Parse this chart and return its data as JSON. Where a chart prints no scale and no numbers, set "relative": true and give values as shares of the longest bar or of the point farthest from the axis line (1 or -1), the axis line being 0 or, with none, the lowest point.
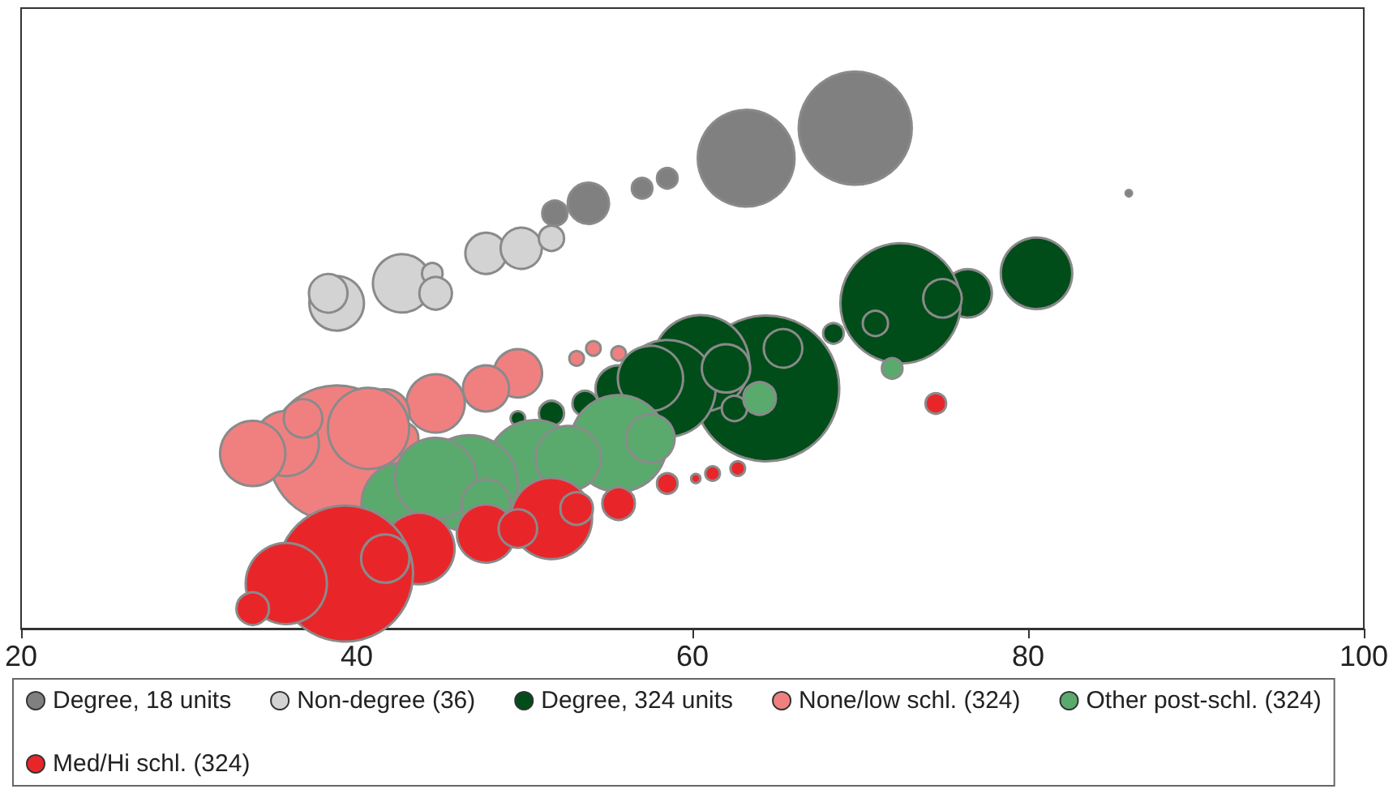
{
  "chart_data": {
    "type": "bubble",
    "relative": true,
    "xlim": [
      20,
      100
    ],
    "xticks": [
      20,
      40,
      60,
      80,
      100
    ],
    "legend": "bottom",
    "grid": false,
    "series": [
      {
        "name": "Degree, 18 units",
        "color": "#808080",
        "x": [
          86.0,
          69.7,
          63.2,
          58.5,
          57.0,
          53.8,
          51.8
        ],
        "values": [
          0.87,
          1.0,
          0.94,
          0.9,
          0.88,
          0.85,
          0.83
        ],
        "sizes": [
          0.002,
          0.6,
          0.44,
          0.02,
          0.02,
          0.08,
          0.03
        ]
      },
      {
        "name": "Non-degree (36)",
        "color": "#d3d3d3",
        "x": [
          38.8,
          42.7,
          44.5,
          47.7,
          49.8,
          51.6,
          44.7,
          38.3
        ],
        "values": [
          0.65,
          0.69,
          0.71,
          0.75,
          0.76,
          0.78,
          0.67,
          0.67
        ],
        "sizes": [
          0.14,
          0.16,
          0.02,
          0.08,
          0.08,
          0.03,
          0.05,
          0.07
        ]
      },
      {
        "name": "Degree, 324 units",
        "color": "#004d1a",
        "x": [
          80.5,
          76.4,
          72.4,
          74.9,
          70.9,
          68.4,
          64.4,
          60.5,
          58.5,
          62.0,
          55.6,
          53.6,
          51.6,
          49.6,
          65.4,
          62.5,
          57.5
        ],
        "values": [
          0.71,
          0.67,
          0.65,
          0.66,
          0.61,
          0.59,
          0.48,
          0.53,
          0.48,
          0.52,
          0.48,
          0.45,
          0.43,
          0.42,
          0.56,
          0.44,
          0.5
        ],
        "sizes": [
          0.24,
          0.11,
          0.68,
          0.07,
          0.03,
          0.02,
          1.0,
          0.44,
          0.44,
          0.11,
          0.1,
          0.03,
          0.03,
          0.01,
          0.07,
          0.03,
          0.2
        ]
      },
      {
        "name": "None/low schl. (324)",
        "color": "#f08080",
        "x": [
          55.6,
          53.1,
          54.1,
          49.6,
          47.7,
          44.7,
          41.7,
          38.8,
          35.8,
          33.8,
          36.8,
          42.7,
          40.7
        ],
        "values": [
          0.55,
          0.54,
          0.56,
          0.51,
          0.48,
          0.45,
          0.43,
          0.35,
          0.37,
          0.35,
          0.42,
          0.38,
          0.4
        ],
        "sizes": [
          0.01,
          0.01,
          0.01,
          0.11,
          0.1,
          0.16,
          0.11,
          0.87,
          0.2,
          0.2,
          0.07,
          0.05,
          0.31
        ]
      },
      {
        "name": "Other post-schl. (324)",
        "color": "#5aaa6e",
        "x": [
          71.9,
          64.0,
          55.6,
          50.6,
          46.7,
          42.7,
          57.5,
          52.6,
          44.7,
          47.7
        ],
        "values": [
          0.52,
          0.46,
          0.37,
          0.32,
          0.29,
          0.25,
          0.38,
          0.34,
          0.3,
          0.25
        ],
        "sizes": [
          0.02,
          0.05,
          0.44,
          0.44,
          0.44,
          0.31,
          0.11,
          0.2,
          0.31,
          0.11
        ]
      },
      {
        "name": "Med/Hi schl. (324)",
        "color": "#e8262a",
        "x": [
          74.5,
          62.7,
          61.2,
          60.2,
          58.5,
          55.6,
          51.6,
          47.7,
          43.7,
          39.3,
          35.8,
          33.8,
          41.7,
          49.6,
          53.1
        ],
        "values": [
          0.45,
          0.32,
          0.31,
          0.3,
          0.29,
          0.25,
          0.22,
          0.19,
          0.16,
          0.11,
          0.09,
          0.04,
          0.14,
          0.2,
          0.24
        ],
        "sizes": [
          0.02,
          0.01,
          0.01,
          0.004,
          0.02,
          0.05,
          0.31,
          0.16,
          0.24,
          0.87,
          0.31,
          0.05,
          0.11,
          0.07,
          0.05
        ]
      }
    ]
  }
}
